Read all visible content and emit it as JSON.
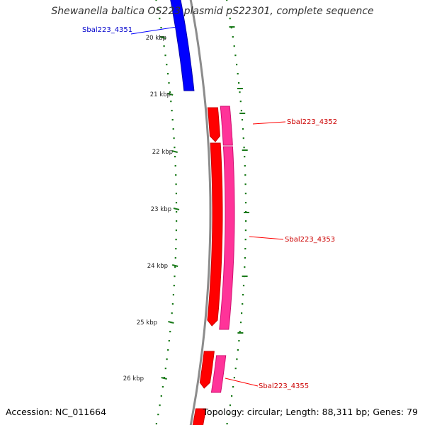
{
  "title": "Shewanella baltica OS223 plasmid pS22301, complete sequence",
  "footer": {
    "accession": "Accession: NC_011664",
    "summary": "Topology: circular; Length: 88,311 bp; Genes: 79"
  },
  "ticks": [
    "20 kbp",
    "21 kbp",
    "22 kbp",
    "23 kbp",
    "24 kbp",
    "25 kbp",
    "26 kbp"
  ],
  "genes": [
    {
      "label": "Sbal223_4351",
      "color": "#0000cc"
    },
    {
      "label": "Sbal223_4352",
      "color": "#cc0000"
    },
    {
      "label": "Sbal223_4353",
      "color": "#cc0000"
    },
    {
      "label": "Sbal223_4355",
      "color": "#cc0000"
    }
  ],
  "colors": {
    "backbone": "#8c8c8c",
    "forward_cds": "#0000ff",
    "reverse_cds": "#ff0000",
    "feature_track": "#ff3399",
    "gc_dots": "#1a7a1a"
  }
}
